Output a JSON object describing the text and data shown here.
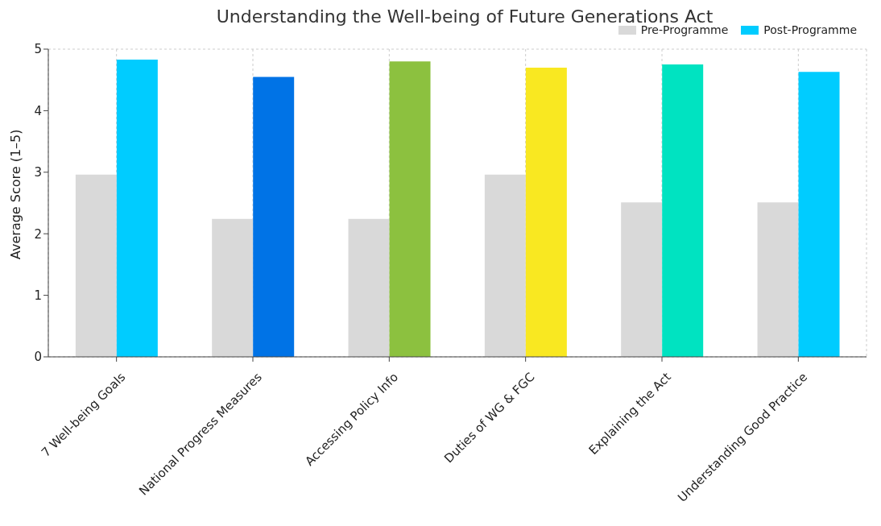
{
  "chart_data": {
    "type": "bar",
    "title": "Understanding the Well-being of Future Generations Act",
    "ylabel": "Average Score (1–5)",
    "categories": [
      "7 Well-being Goals",
      "National Progress Measures",
      "Accessing Policy Info",
      "Duties of WG & FGC",
      "Explaining the Act",
      "Understanding Good Practice"
    ],
    "series": [
      {
        "name": "Pre-Programme",
        "color": "#d9d9d9",
        "values": [
          2.96,
          2.24,
          2.24,
          2.96,
          2.51,
          2.51
        ]
      },
      {
        "name": "Post-Programme",
        "color": "#00ccff",
        "colors": [
          "#00ccff",
          "#0073e6",
          "#8cc13f",
          "#f9e821",
          "#00e3c1",
          "#00ccff"
        ],
        "values": [
          4.83,
          4.55,
          4.8,
          4.7,
          4.75,
          4.63
        ]
      }
    ],
    "ylim": [
      0,
      5
    ],
    "yticks": [
      0,
      1,
      2,
      3,
      4,
      5
    ],
    "grid": true,
    "legend": "top right"
  }
}
